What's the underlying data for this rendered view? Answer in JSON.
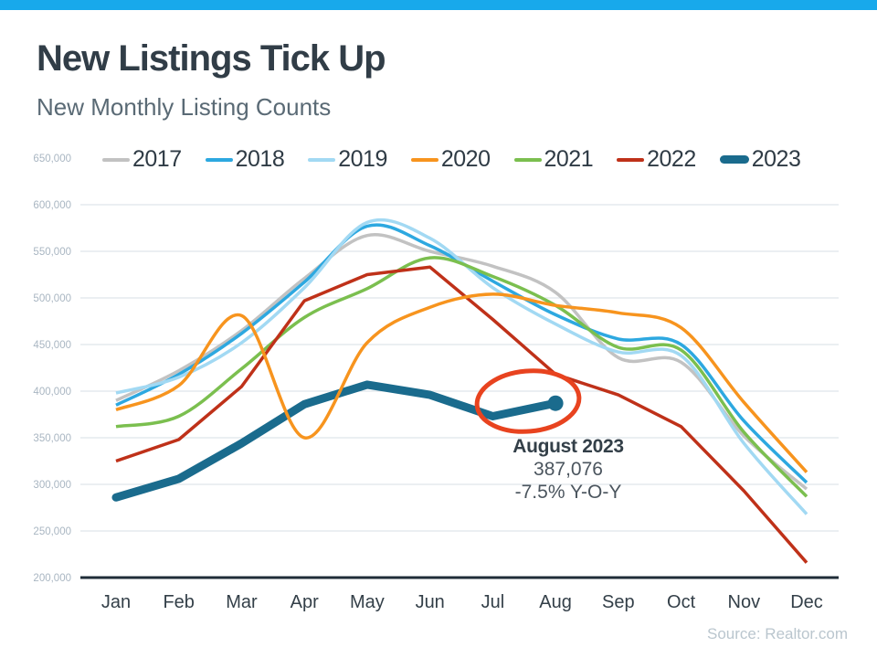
{
  "header": {
    "title": "New Listings Tick Up",
    "subtitle": "New Monthly Listing Counts"
  },
  "source_credit": "Source: Realtor.com",
  "theme": {
    "top_bar": "#18a9eb",
    "title_color": "#313d47",
    "subtitle_color": "#5a6a75",
    "gridline": "#dfe5ea",
    "axis_line": "#1f2d38",
    "y_label_color": "#a9b6c2",
    "x_label_color": "#333f48",
    "annotation_title_color": "#333f48",
    "annotation_value_color": "#4b555e",
    "source_color": "#bac6ce"
  },
  "chart_data": {
    "type": "line",
    "title": "New Listings Tick Up",
    "subtitle": "New Monthly Listing Counts",
    "grid": true,
    "legend_position": "top",
    "categories": [
      "Jan",
      "Feb",
      "Mar",
      "Apr",
      "May",
      "Jun",
      "Jul",
      "Aug",
      "Sep",
      "Oct",
      "Nov",
      "Dec"
    ],
    "y_axis": {
      "min": 200000,
      "max": 650000,
      "step": 50000,
      "tick_labels": [
        "650,000",
        "600,000",
        "550,000",
        "500,000",
        "450,000",
        "400,000",
        "350,000",
        "300,000",
        "250,000",
        "200,000"
      ]
    },
    "series": [
      {
        "name": "2017",
        "color": "#c2c2c2",
        "width": 3.5,
        "smooth": true,
        "values": [
          390000,
          422000,
          465000,
          521000,
          567000,
          550000,
          534000,
          506000,
          436000,
          431000,
          352000,
          295000
        ]
      },
      {
        "name": "2018",
        "color": "#2da8e0",
        "width": 3.5,
        "smooth": true,
        "values": [
          385000,
          418000,
          462000,
          517000,
          577000,
          556000,
          518000,
          482000,
          456000,
          450000,
          368000,
          302000
        ]
      },
      {
        "name": "2019",
        "color": "#a2d9f3",
        "width": 3.5,
        "smooth": true,
        "values": [
          398000,
          415000,
          452000,
          511000,
          581000,
          564000,
          511000,
          472000,
          442000,
          438000,
          344000,
          268000
        ]
      },
      {
        "name": "2020",
        "color": "#f7941e",
        "width": 3.5,
        "smooth": true,
        "values": [
          380000,
          406000,
          481000,
          350000,
          452000,
          490000,
          504000,
          492000,
          484000,
          468000,
          388000,
          313000
        ]
      },
      {
        "name": "2021",
        "color": "#7bbf4f",
        "width": 3.5,
        "smooth": true,
        "values": [
          362000,
          373000,
          424000,
          479000,
          510000,
          543000,
          523000,
          492000,
          447000,
          444000,
          356000,
          287000
        ]
      },
      {
        "name": "2022",
        "color": "#bf3119",
        "width": 3.5,
        "smooth": false,
        "values": [
          325000,
          348000,
          405000,
          497000,
          525000,
          533000,
          477000,
          418000,
          396000,
          362000,
          293000,
          216000
        ]
      },
      {
        "name": "2023",
        "color": "#1a6b8d",
        "width": 9,
        "smooth": false,
        "end_marker": true,
        "values": [
          286000,
          306000,
          344000,
          386000,
          407000,
          396000,
          373000,
          387076
        ]
      }
    ],
    "annotation": {
      "label": "August 2023",
      "value": "387,076",
      "yoy": "-7.5% Y-O-Y",
      "attached_to": {
        "series": "2023",
        "category": "Aug"
      },
      "ellipse_color": "#e8431f"
    }
  }
}
